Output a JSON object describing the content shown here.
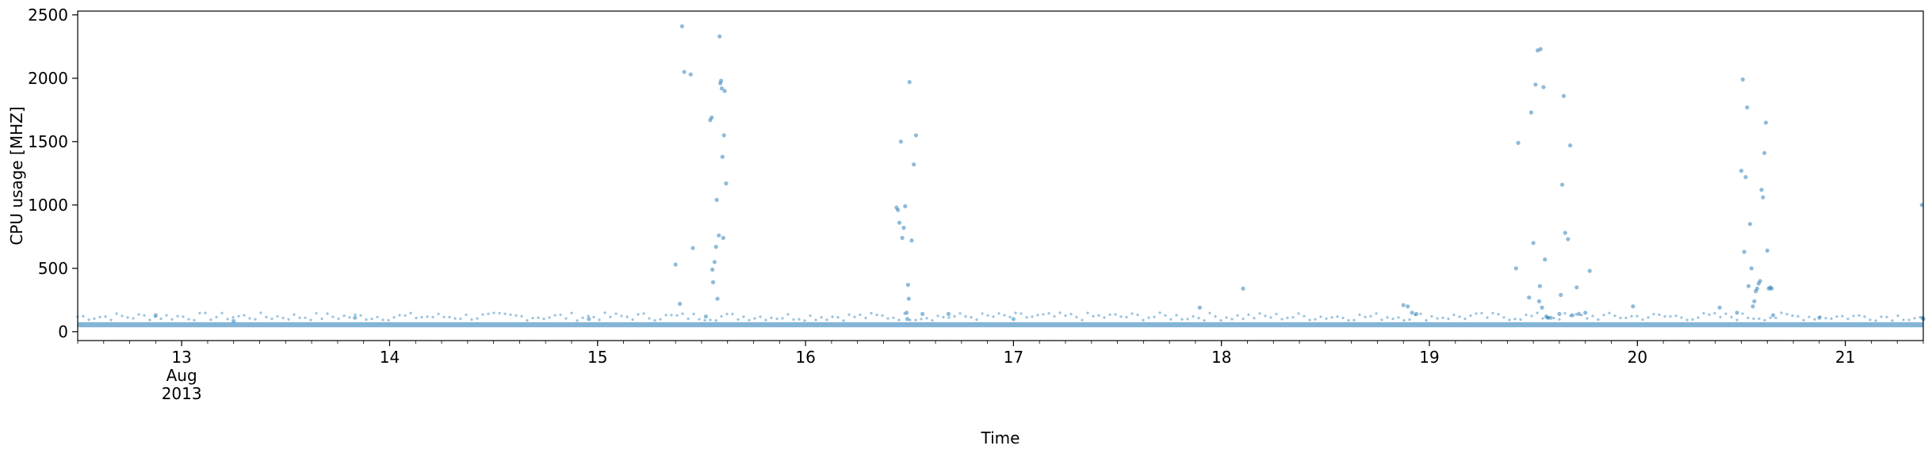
{
  "chart_data": {
    "type": "scatter",
    "title": "",
    "xlabel": "Time",
    "ylabel": "CPU usage [MHZ]",
    "xlim": [
      "2013-08-12T12:00",
      "2013-08-21T09:00"
    ],
    "ylim": [
      -70,
      2530
    ],
    "x_ticks": [
      {
        "at": "2013-08-13",
        "lines": [
          "13",
          "Aug",
          "2013"
        ]
      },
      {
        "at": "2013-08-14",
        "lines": [
          "14"
        ]
      },
      {
        "at": "2013-08-15",
        "lines": [
          "15"
        ]
      },
      {
        "at": "2013-08-16",
        "lines": [
          "16"
        ]
      },
      {
        "at": "2013-08-17",
        "lines": [
          "17"
        ]
      },
      {
        "at": "2013-08-18",
        "lines": [
          "18"
        ]
      },
      {
        "at": "2013-08-19",
        "lines": [
          "19"
        ]
      },
      {
        "at": "2013-08-20",
        "lines": [
          "20"
        ]
      },
      {
        "at": "2013-08-21",
        "lines": [
          "21"
        ]
      }
    ],
    "y_ticks": [
      0,
      500,
      1000,
      1500,
      2000,
      2500
    ],
    "grid": false,
    "marker_color": "#1f77b4",
    "baseline_band": {
      "from": "2013-08-12T12:00",
      "to": "2013-08-21T09:00",
      "low": 35,
      "high": 75
    },
    "series": [
      {
        "points": [
          [
            "2013-08-12T21:00",
            130
          ],
          [
            "2013-08-13T06:00",
            85
          ],
          [
            "2013-08-13T20:00",
            110
          ],
          [
            "2013-08-14T23:00",
            100
          ],
          [
            "2013-08-15T09:00",
            530
          ],
          [
            "2013-08-15T09:30",
            220
          ],
          [
            "2013-08-15T09:45",
            2410
          ],
          [
            "2013-08-15T10:00",
            2050
          ],
          [
            "2013-08-15T10:45",
            2030
          ],
          [
            "2013-08-15T11:00",
            660
          ],
          [
            "2013-08-15T12:30",
            120
          ],
          [
            "2013-08-15T13:00",
            1670
          ],
          [
            "2013-08-15T13:10",
            1690
          ],
          [
            "2013-08-15T13:15",
            490
          ],
          [
            "2013-08-15T13:20",
            390
          ],
          [
            "2013-08-15T13:30",
            550
          ],
          [
            "2013-08-15T13:40",
            670
          ],
          [
            "2013-08-15T13:45",
            1040
          ],
          [
            "2013-08-15T13:50",
            260
          ],
          [
            "2013-08-15T14:00",
            760
          ],
          [
            "2013-08-15T14:05",
            2330
          ],
          [
            "2013-08-15T14:10",
            1960
          ],
          [
            "2013-08-15T14:15",
            1980
          ],
          [
            "2013-08-15T14:20",
            1920
          ],
          [
            "2013-08-15T14:25",
            1380
          ],
          [
            "2013-08-15T14:30",
            740
          ],
          [
            "2013-08-15T14:35",
            1550
          ],
          [
            "2013-08-15T14:40",
            1900
          ],
          [
            "2013-08-15T14:50",
            1170
          ],
          [
            "2013-08-16T10:30",
            980
          ],
          [
            "2013-08-16T10:40",
            960
          ],
          [
            "2013-08-16T10:50",
            860
          ],
          [
            "2013-08-16T11:00",
            1500
          ],
          [
            "2013-08-16T11:10",
            740
          ],
          [
            "2013-08-16T11:20",
            820
          ],
          [
            "2013-08-16T11:30",
            990
          ],
          [
            "2013-08-16T11:40",
            150
          ],
          [
            "2013-08-16T11:45",
            100
          ],
          [
            "2013-08-16T11:50",
            370
          ],
          [
            "2013-08-16T11:55",
            260
          ],
          [
            "2013-08-16T12:00",
            1970
          ],
          [
            "2013-08-16T12:15",
            720
          ],
          [
            "2013-08-16T12:30",
            1320
          ],
          [
            "2013-08-16T12:45",
            1550
          ],
          [
            "2013-08-16T13:30",
            140
          ],
          [
            "2013-08-16T16:30",
            140
          ],
          [
            "2013-08-17T00:00",
            100
          ],
          [
            "2013-08-17T21:30",
            190
          ],
          [
            "2013-08-18T02:30",
            340
          ],
          [
            "2013-08-18T21:00",
            210
          ],
          [
            "2013-08-18T21:30",
            200
          ],
          [
            "2013-08-18T22:00",
            150
          ],
          [
            "2013-08-18T22:30",
            140
          ],
          [
            "2013-08-19T10:00",
            500
          ],
          [
            "2013-08-19T10:15",
            1490
          ],
          [
            "2013-08-19T11:30",
            270
          ],
          [
            "2013-08-19T11:45",
            1730
          ],
          [
            "2013-08-19T12:00",
            700
          ],
          [
            "2013-08-19T12:15",
            1950
          ],
          [
            "2013-08-19T12:30",
            2220
          ],
          [
            "2013-08-19T12:40",
            240
          ],
          [
            "2013-08-19T12:45",
            360
          ],
          [
            "2013-08-19T12:50",
            2230
          ],
          [
            "2013-08-19T13:00",
            190
          ],
          [
            "2013-08-19T13:10",
            1930
          ],
          [
            "2013-08-19T13:20",
            570
          ],
          [
            "2013-08-19T13:30",
            120
          ],
          [
            "2013-08-19T13:40",
            110
          ],
          [
            "2013-08-19T14:00",
            110
          ],
          [
            "2013-08-19T15:00",
            140
          ],
          [
            "2013-08-19T15:10",
            290
          ],
          [
            "2013-08-19T15:20",
            1160
          ],
          [
            "2013-08-19T15:30",
            1860
          ],
          [
            "2013-08-19T15:40",
            780
          ],
          [
            "2013-08-19T16:00",
            730
          ],
          [
            "2013-08-19T16:15",
            1470
          ],
          [
            "2013-08-19T16:30",
            130
          ],
          [
            "2013-08-19T17:00",
            350
          ],
          [
            "2013-08-19T17:15",
            140
          ],
          [
            "2013-08-19T18:00",
            150
          ],
          [
            "2013-08-19T18:30",
            480
          ],
          [
            "2013-08-19T23:30",
            200
          ],
          [
            "2013-08-20T09:30",
            190
          ],
          [
            "2013-08-20T11:30",
            150
          ],
          [
            "2013-08-20T12:00",
            1270
          ],
          [
            "2013-08-20T12:10",
            1990
          ],
          [
            "2013-08-20T12:20",
            630
          ],
          [
            "2013-08-20T12:30",
            1220
          ],
          [
            "2013-08-20T12:40",
            1770
          ],
          [
            "2013-08-20T12:50",
            360
          ],
          [
            "2013-08-20T13:00",
            850
          ],
          [
            "2013-08-20T13:10",
            500
          ],
          [
            "2013-08-20T13:20",
            200
          ],
          [
            "2013-08-20T13:30",
            240
          ],
          [
            "2013-08-20T13:40",
            320
          ],
          [
            "2013-08-20T13:50",
            340
          ],
          [
            "2013-08-20T14:00",
            380
          ],
          [
            "2013-08-20T14:10",
            400
          ],
          [
            "2013-08-20T14:20",
            1120
          ],
          [
            "2013-08-20T14:30",
            1060
          ],
          [
            "2013-08-20T14:40",
            1410
          ],
          [
            "2013-08-20T14:50",
            1650
          ],
          [
            "2013-08-20T15:00",
            640
          ],
          [
            "2013-08-20T15:10",
            340
          ],
          [
            "2013-08-20T15:20",
            350
          ],
          [
            "2013-08-20T15:30",
            340
          ],
          [
            "2013-08-20T15:40",
            130
          ],
          [
            "2013-08-20T21:00",
            110
          ],
          [
            "2013-08-21T08:50",
            1000
          ],
          [
            "2013-08-21T08:55",
            110
          ],
          [
            "2013-08-21T09:00",
            100
          ]
        ]
      }
    ]
  }
}
